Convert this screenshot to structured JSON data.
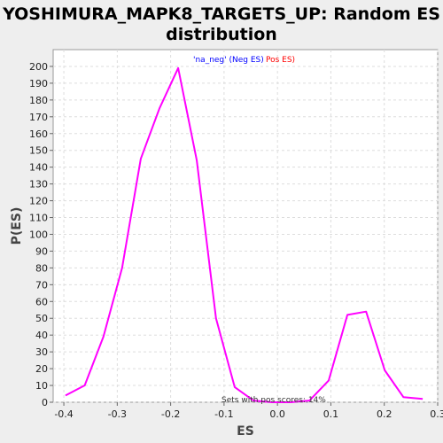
{
  "chart_data": {
    "type": "line",
    "title_lines": [
      "YOSHIMURA_MAPK8_TARGETS_UP: Random ES",
      "distribution"
    ],
    "xlabel": "ES",
    "ylabel": "P(ES)",
    "xlim": [
      -0.42,
      0.3
    ],
    "ylim": [
      0,
      210
    ],
    "x_ticks": [
      -0.4,
      -0.3,
      -0.2,
      -0.1,
      0.0,
      0.1,
      0.2,
      0.3
    ],
    "x_tick_labels": [
      "-0.4",
      "-0.3",
      "-0.2",
      "-0.1",
      "0.0",
      "0.1",
      "0.2",
      "0.3"
    ],
    "y_ticks": [
      0,
      10,
      20,
      30,
      40,
      50,
      60,
      70,
      80,
      90,
      100,
      110,
      120,
      130,
      140,
      150,
      160,
      170,
      180,
      190,
      200
    ],
    "grid": true,
    "legend": {
      "placement": "top-center",
      "entries": [
        {
          "text": "'na_neg' (Neg ES)",
          "color": "#0000ff"
        },
        {
          "text": "Pos ES)",
          "color": "#ff0000"
        }
      ]
    },
    "annotation": "Sets with pos scores: 14%",
    "series": [
      {
        "color": "#ff00ff",
        "x": [
          -0.397,
          -0.361,
          -0.326,
          -0.291,
          -0.256,
          -0.221,
          -0.186,
          -0.151,
          -0.115,
          -0.08,
          -0.045,
          -0.01,
          0.025,
          0.06,
          0.096,
          0.131,
          0.166,
          0.201,
          0.236,
          0.272
        ],
        "y": [
          4,
          10,
          39,
          80,
          145,
          175,
          199,
          144,
          50,
          9,
          1,
          0,
          0,
          1,
          13,
          52,
          54,
          19,
          3,
          2
        ]
      }
    ]
  }
}
